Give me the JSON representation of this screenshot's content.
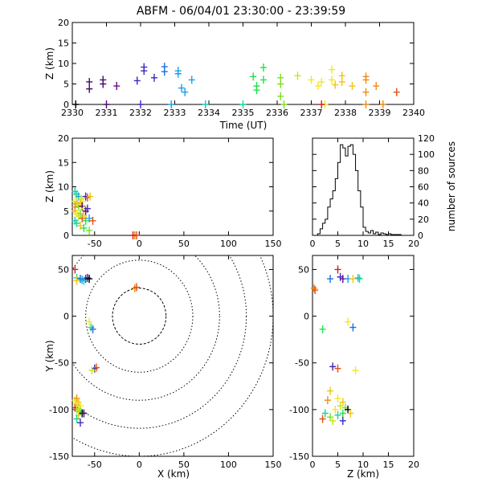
{
  "title": "ABFM - 06/04/01 23:30:00 - 23:39:59",
  "colors": {
    "palette": [
      "#000000",
      "#4b0a6e",
      "#6a0a8c",
      "#3a2abf",
      "#1a6fe0",
      "#1aa0e8",
      "#17c7c0",
      "#1ad68a",
      "#22e04a",
      "#7ae020",
      "#c8e51a",
      "#f4e81a",
      "#f0c21a",
      "#ee8a12",
      "#e35012",
      "#d2201a"
    ]
  },
  "chart_data": [
    {
      "id": "time",
      "type": "scatter",
      "xlabel": "Time (UT)",
      "ylabel": "Z (km)",
      "xlim": [
        2330,
        2340
      ],
      "ylim": [
        0,
        20
      ],
      "xticks": [
        "2330",
        "2331",
        "2332",
        "2333",
        "2334",
        "2335",
        "2336",
        "2337",
        "2338",
        "2339",
        "2340"
      ],
      "yticks": [
        "0",
        "5",
        "10",
        "15",
        "20"
      ],
      "points": [
        [
          2330.1,
          0.0,
          0
        ],
        [
          2330.5,
          5.5,
          1
        ],
        [
          2330.5,
          3.8,
          1
        ],
        [
          2330.9,
          6.0,
          1
        ],
        [
          2330.9,
          5.0,
          1
        ],
        [
          2331.0,
          0.0,
          1
        ],
        [
          2331.3,
          4.5,
          2
        ],
        [
          2331.9,
          5.8,
          3
        ],
        [
          2332.1,
          8.2,
          3
        ],
        [
          2332.1,
          9.1,
          3
        ],
        [
          2332.0,
          0.0,
          3
        ],
        [
          2332.4,
          6.5,
          3
        ],
        [
          2332.7,
          9.2,
          4
        ],
        [
          2332.7,
          8.0,
          4
        ],
        [
          2333.1,
          8.2,
          5
        ],
        [
          2333.1,
          7.5,
          5
        ],
        [
          2333.2,
          4.0,
          5
        ],
        [
          2333.3,
          3.0,
          5
        ],
        [
          2333.5,
          6.0,
          5
        ],
        [
          2332.9,
          0.0,
          5
        ],
        [
          2333.9,
          0.0,
          6
        ],
        [
          2335.0,
          0.0,
          7
        ],
        [
          2335.3,
          6.8,
          8
        ],
        [
          2335.4,
          4.5,
          8
        ],
        [
          2335.4,
          3.5,
          8
        ],
        [
          2335.6,
          9.0,
          8
        ],
        [
          2335.6,
          6.0,
          8
        ],
        [
          2336.1,
          6.5,
          9
        ],
        [
          2336.1,
          5.0,
          9
        ],
        [
          2336.1,
          2.0,
          9
        ],
        [
          2336.2,
          0.0,
          9
        ],
        [
          2336.6,
          7.0,
          10
        ],
        [
          2337.0,
          6.0,
          11
        ],
        [
          2337.2,
          4.5,
          11
        ],
        [
          2337.3,
          5.5,
          11
        ],
        [
          2337.6,
          8.5,
          11
        ],
        [
          2337.6,
          6.0,
          11
        ],
        [
          2337.7,
          4.8,
          12
        ],
        [
          2337.9,
          7.0,
          12
        ],
        [
          2337.9,
          5.5,
          12
        ],
        [
          2337.4,
          0.0,
          11
        ],
        [
          2338.2,
          4.5,
          12
        ],
        [
          2338.6,
          6.8,
          13
        ],
        [
          2338.6,
          6.0,
          13
        ],
        [
          2338.6,
          3.0,
          13
        ],
        [
          2338.9,
          4.5,
          13
        ],
        [
          2339.1,
          0.0,
          13
        ],
        [
          2339.5,
          3.0,
          14
        ],
        [
          2338.6,
          0.0,
          13
        ],
        [
          2337.3,
          0.0,
          15
        ]
      ]
    },
    {
      "id": "xz",
      "type": "scatter",
      "xlabel": "",
      "ylabel": "Z (km)",
      "xlim": [
        -75,
        150
      ],
      "ylim": [
        0,
        20
      ],
      "xticks": [
        "-50",
        "0",
        "50",
        "100",
        "150"
      ],
      "yticks": [
        "0",
        "5",
        "10",
        "15",
        "20"
      ],
      "points": [
        [
          -72,
          9.0,
          6
        ],
        [
          -70,
          8.5,
          7
        ],
        [
          -68,
          8.0,
          5
        ],
        [
          -65,
          7.5,
          10
        ],
        [
          -63,
          7.0,
          11
        ],
        [
          -60,
          8.0,
          3
        ],
        [
          -58,
          7.8,
          14
        ],
        [
          -55,
          8.0,
          12
        ],
        [
          -72,
          7.0,
          11
        ],
        [
          -70,
          6.5,
          8
        ],
        [
          -68,
          6.0,
          9
        ],
        [
          -66,
          6.5,
          12
        ],
        [
          -64,
          6.0,
          1
        ],
        [
          -62,
          5.5,
          11
        ],
        [
          -60,
          5.0,
          2
        ],
        [
          -58,
          5.5,
          3
        ],
        [
          -72,
          5.0,
          12
        ],
        [
          -70,
          4.5,
          11
        ],
        [
          -68,
          4.0,
          10
        ],
        [
          -66,
          4.5,
          9
        ],
        [
          -64,
          3.5,
          14
        ],
        [
          -62,
          4.0,
          12
        ],
        [
          -60,
          3.0,
          8
        ],
        [
          -56,
          3.5,
          5
        ],
        [
          -52,
          3.0,
          14
        ],
        [
          -72,
          3.0,
          6
        ],
        [
          -70,
          2.5,
          7
        ],
        [
          -66,
          2.0,
          12
        ],
        [
          -62,
          1.5,
          8
        ],
        [
          -56,
          1.0,
          9
        ],
        [
          -72,
          5.8,
          13
        ],
        [
          -70,
          6.8,
          12
        ],
        [
          -5,
          0.0,
          13
        ],
        [
          -3,
          0.0,
          14
        ],
        [
          -7,
          0.0,
          15
        ]
      ]
    },
    {
      "id": "histogram",
      "type": "bar",
      "xlabel": "",
      "ylabel": "number of sources",
      "xlim": [
        0,
        20
      ],
      "ylim": [
        0,
        120
      ],
      "xticks": [
        "0",
        "5",
        "10",
        "15",
        "20"
      ],
      "yticks": [
        "0",
        "20",
        "40",
        "60",
        "80",
        "100",
        "120"
      ],
      "bin_start": 0,
      "bin_width": 0.5,
      "values": [
        0,
        0,
        2,
        8,
        15,
        20,
        35,
        45,
        55,
        70,
        90,
        112,
        108,
        98,
        110,
        112,
        100,
        80,
        55,
        35,
        10,
        5,
        3,
        6,
        2,
        4,
        1,
        3,
        2,
        1,
        2,
        1,
        1,
        1,
        1,
        0,
        0,
        0,
        0,
        0
      ]
    },
    {
      "id": "xy",
      "type": "scatter",
      "xlabel": "X (km)",
      "ylabel": "Y (km)",
      "xlim": [
        -75,
        150
      ],
      "ylim": [
        -150,
        65
      ],
      "xticks": [
        "-50",
        "0",
        "50",
        "100",
        "150"
      ],
      "yticks": [
        "-150",
        "-100",
        "-50",
        "0",
        "50"
      ],
      "rings": [
        30,
        60,
        90,
        120,
        150
      ],
      "points": [
        [
          -72,
          50,
          15
        ],
        [
          -70,
          41,
          7
        ],
        [
          -66,
          40,
          4
        ],
        [
          -64,
          39,
          5
        ],
        [
          -60,
          40,
          3
        ],
        [
          -58,
          41,
          2
        ],
        [
          -62,
          38,
          6
        ],
        [
          -70,
          38,
          12
        ],
        [
          -56,
          40,
          0
        ],
        [
          -5,
          30,
          13
        ],
        [
          -3,
          31,
          14
        ],
        [
          -56,
          -6,
          11
        ],
        [
          -54,
          -12,
          8
        ],
        [
          -52,
          -14,
          4
        ],
        [
          -50,
          -56,
          3
        ],
        [
          -48,
          -55,
          14
        ],
        [
          -53,
          -58,
          10
        ],
        [
          -72,
          -90,
          11
        ],
        [
          -70,
          -88,
          13
        ],
        [
          -68,
          -92,
          12
        ],
        [
          -66,
          -96,
          11
        ],
        [
          -70,
          -100,
          9
        ],
        [
          -66,
          -102,
          8
        ],
        [
          -64,
          -104,
          0
        ],
        [
          -68,
          -106,
          12
        ],
        [
          -70,
          -110,
          7
        ],
        [
          -66,
          -114,
          3
        ],
        [
          -72,
          -98,
          15
        ],
        [
          -62,
          -104,
          1
        ],
        [
          -68,
          -99,
          10
        ],
        [
          -70,
          -95,
          12
        ]
      ]
    },
    {
      "id": "zy",
      "type": "scatter",
      "xlabel": "Z (km)",
      "ylabel": "",
      "xlim": [
        0,
        20
      ],
      "ylim": [
        -150,
        65
      ],
      "xticks": [
        "0",
        "5",
        "10",
        "15",
        "20"
      ],
      "yticks": [
        "-150",
        "-100",
        "-50",
        "0",
        "50"
      ],
      "points": [
        [
          0.3,
          30,
          13
        ],
        [
          0.5,
          28,
          14
        ],
        [
          3.5,
          40,
          4
        ],
        [
          5.0,
          50,
          15
        ],
        [
          5.5,
          42,
          3
        ],
        [
          6.0,
          40,
          2
        ],
        [
          7.0,
          40,
          5
        ],
        [
          8.0,
          40,
          12
        ],
        [
          9.0,
          41,
          6
        ],
        [
          9.3,
          40,
          7
        ],
        [
          2.0,
          -14,
          8
        ],
        [
          7.0,
          -6,
          11
        ],
        [
          8.0,
          -12,
          4
        ],
        [
          4.0,
          -54,
          3
        ],
        [
          5.0,
          -56,
          14
        ],
        [
          8.5,
          -58,
          11
        ],
        [
          3.5,
          -80,
          12
        ],
        [
          3.0,
          -90,
          13
        ],
        [
          5.0,
          -88,
          11
        ],
        [
          6.0,
          -92,
          12
        ],
        [
          5.5,
          -96,
          10
        ],
        [
          4.5,
          -100,
          11
        ],
        [
          6.5,
          -98,
          9
        ],
        [
          7.0,
          -100,
          0
        ],
        [
          6.0,
          -104,
          8
        ],
        [
          5.0,
          -106,
          7
        ],
        [
          3.5,
          -108,
          9
        ],
        [
          2.5,
          -104,
          7
        ],
        [
          6.0,
          -112,
          3
        ],
        [
          7.5,
          -104,
          12
        ],
        [
          2.0,
          -110,
          14
        ],
        [
          4.0,
          -112,
          10
        ]
      ]
    }
  ]
}
